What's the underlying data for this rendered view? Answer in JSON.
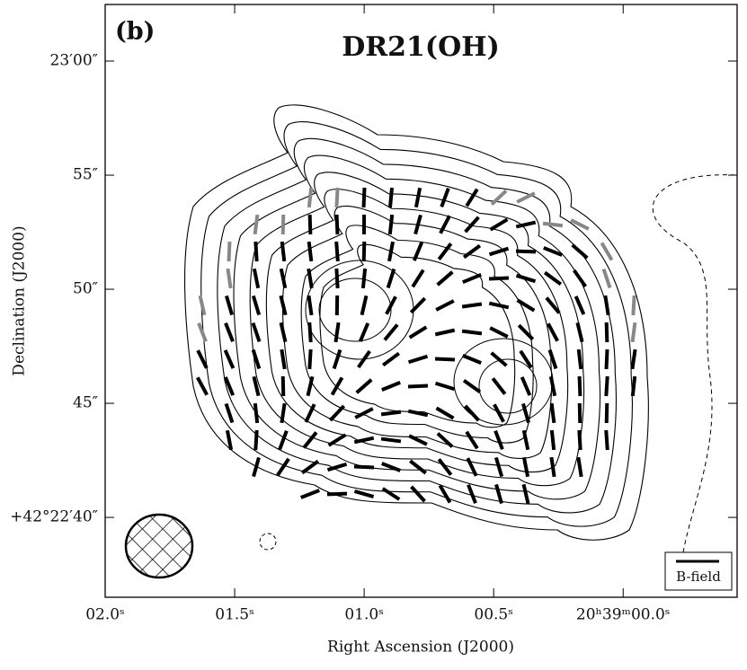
{
  "chart_data": {
    "type": "contour",
    "panel_label": "(b)",
    "title": "DR21(OH)",
    "x_label": "Right Ascension (J2000)",
    "y_label": "Declination (J2000)",
    "xlim": [
      2.0,
      -0.44
    ],
    "xticks": [
      {
        "value": 2.0,
        "label": "02.0ˢ"
      },
      {
        "value": 1.5,
        "label": "01.5ˢ"
      },
      {
        "value": 1.0,
        "label": "01.0ˢ"
      },
      {
        "value": 0.5,
        "label": "00.5ˢ"
      },
      {
        "value": 0.0,
        "label": "20ʰ39ᵐ00.0ˢ"
      }
    ],
    "ylim": [
      36.5,
      62.48
    ],
    "yticks": [
      {
        "value": 60,
        "label": "23′00″"
      },
      {
        "value": 55,
        "label": "55″"
      },
      {
        "value": 50,
        "label": "50″"
      },
      {
        "value": 45,
        "label": "45″"
      },
      {
        "value": 40,
        "label": "+42°22′40″"
      }
    ],
    "legend": "B-field"
  }
}
